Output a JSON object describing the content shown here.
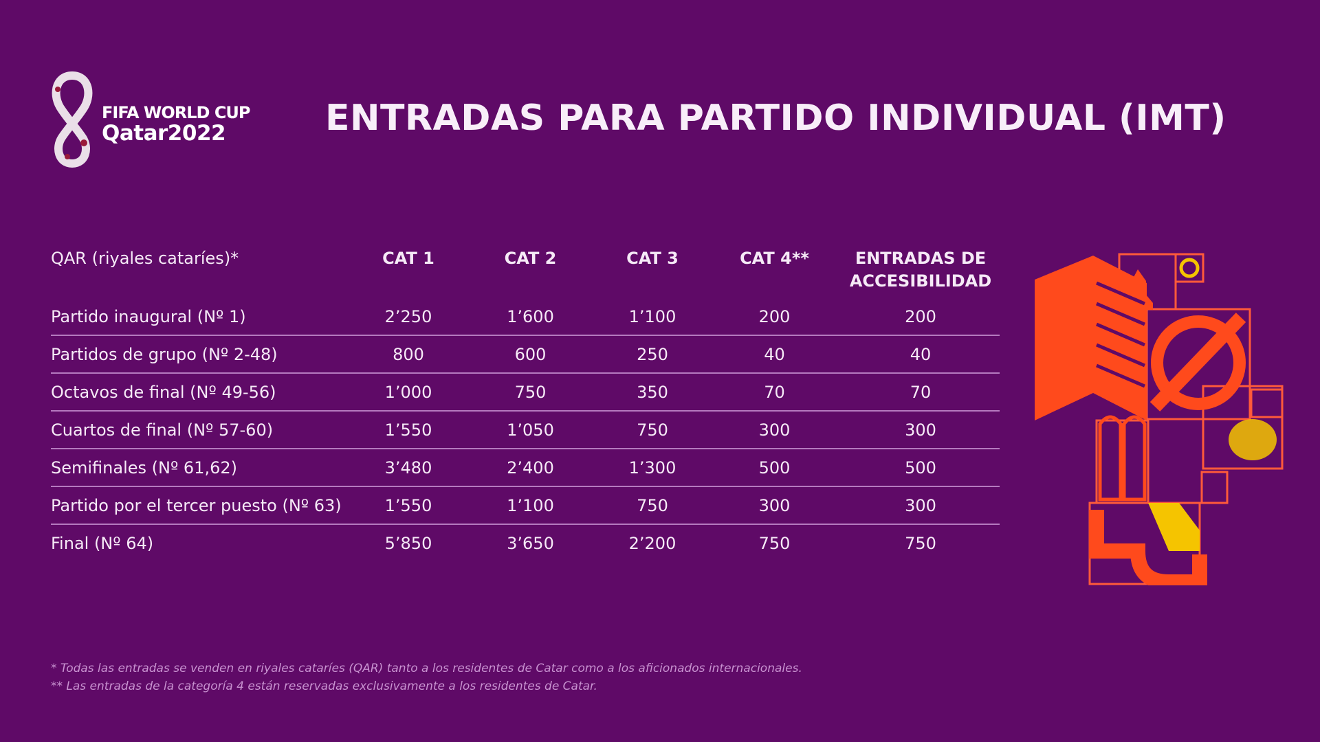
{
  "logo": {
    "line1": "FIFA WORLD CUP",
    "line2": "Qatar2022"
  },
  "title": "ENTRADAS PARA PARTIDO INDIVIDUAL (IMT)",
  "table": {
    "headers": [
      "QAR (riyales cataríes)*",
      "CAT 1",
      "CAT 2",
      "CAT 3",
      "CAT 4**",
      "ENTRADAS DE ACCESIBILIDAD"
    ],
    "rows": [
      [
        "Partido inaugural   (Nº 1)",
        "2’250",
        "1’600",
        "1’100",
        "200",
        "200"
      ],
      [
        "Partidos de grupo (Nº 2-48)",
        "800",
        "600",
        "250",
        "40",
        "40"
      ],
      [
        "Octavos de final (Nº 49-56)",
        "1’000",
        "750",
        "350",
        "70",
        "70"
      ],
      [
        "Cuartos de final (Nº 57-60)",
        "1’550",
        "1’050",
        "750",
        "300",
        "300"
      ],
      [
        "Semifinales (Nº 61,62)",
        "3’480",
        "2’400",
        "1’300",
        "500",
        "500"
      ],
      [
        "Partido por el tercer puesto (Nº 63)",
        "1’550",
        "1’100",
        "750",
        "300",
        "300"
      ],
      [
        "Final (Nº 64)",
        "5’850",
        "3’650",
        "2’200",
        "750",
        "750"
      ]
    ]
  },
  "footnotes": [
    "* Todas las entradas se venden en riyales cataríes (QAR) tanto a los residentes de Catar como a los aficionados internacionales.",
    "** Las entradas de la categoría 4 están reservadas exclusivamente a los residentes de Catar."
  ],
  "colors": {
    "background": "#5f0a67",
    "accent": "#ff4a1c",
    "gold": "#f5c400"
  }
}
